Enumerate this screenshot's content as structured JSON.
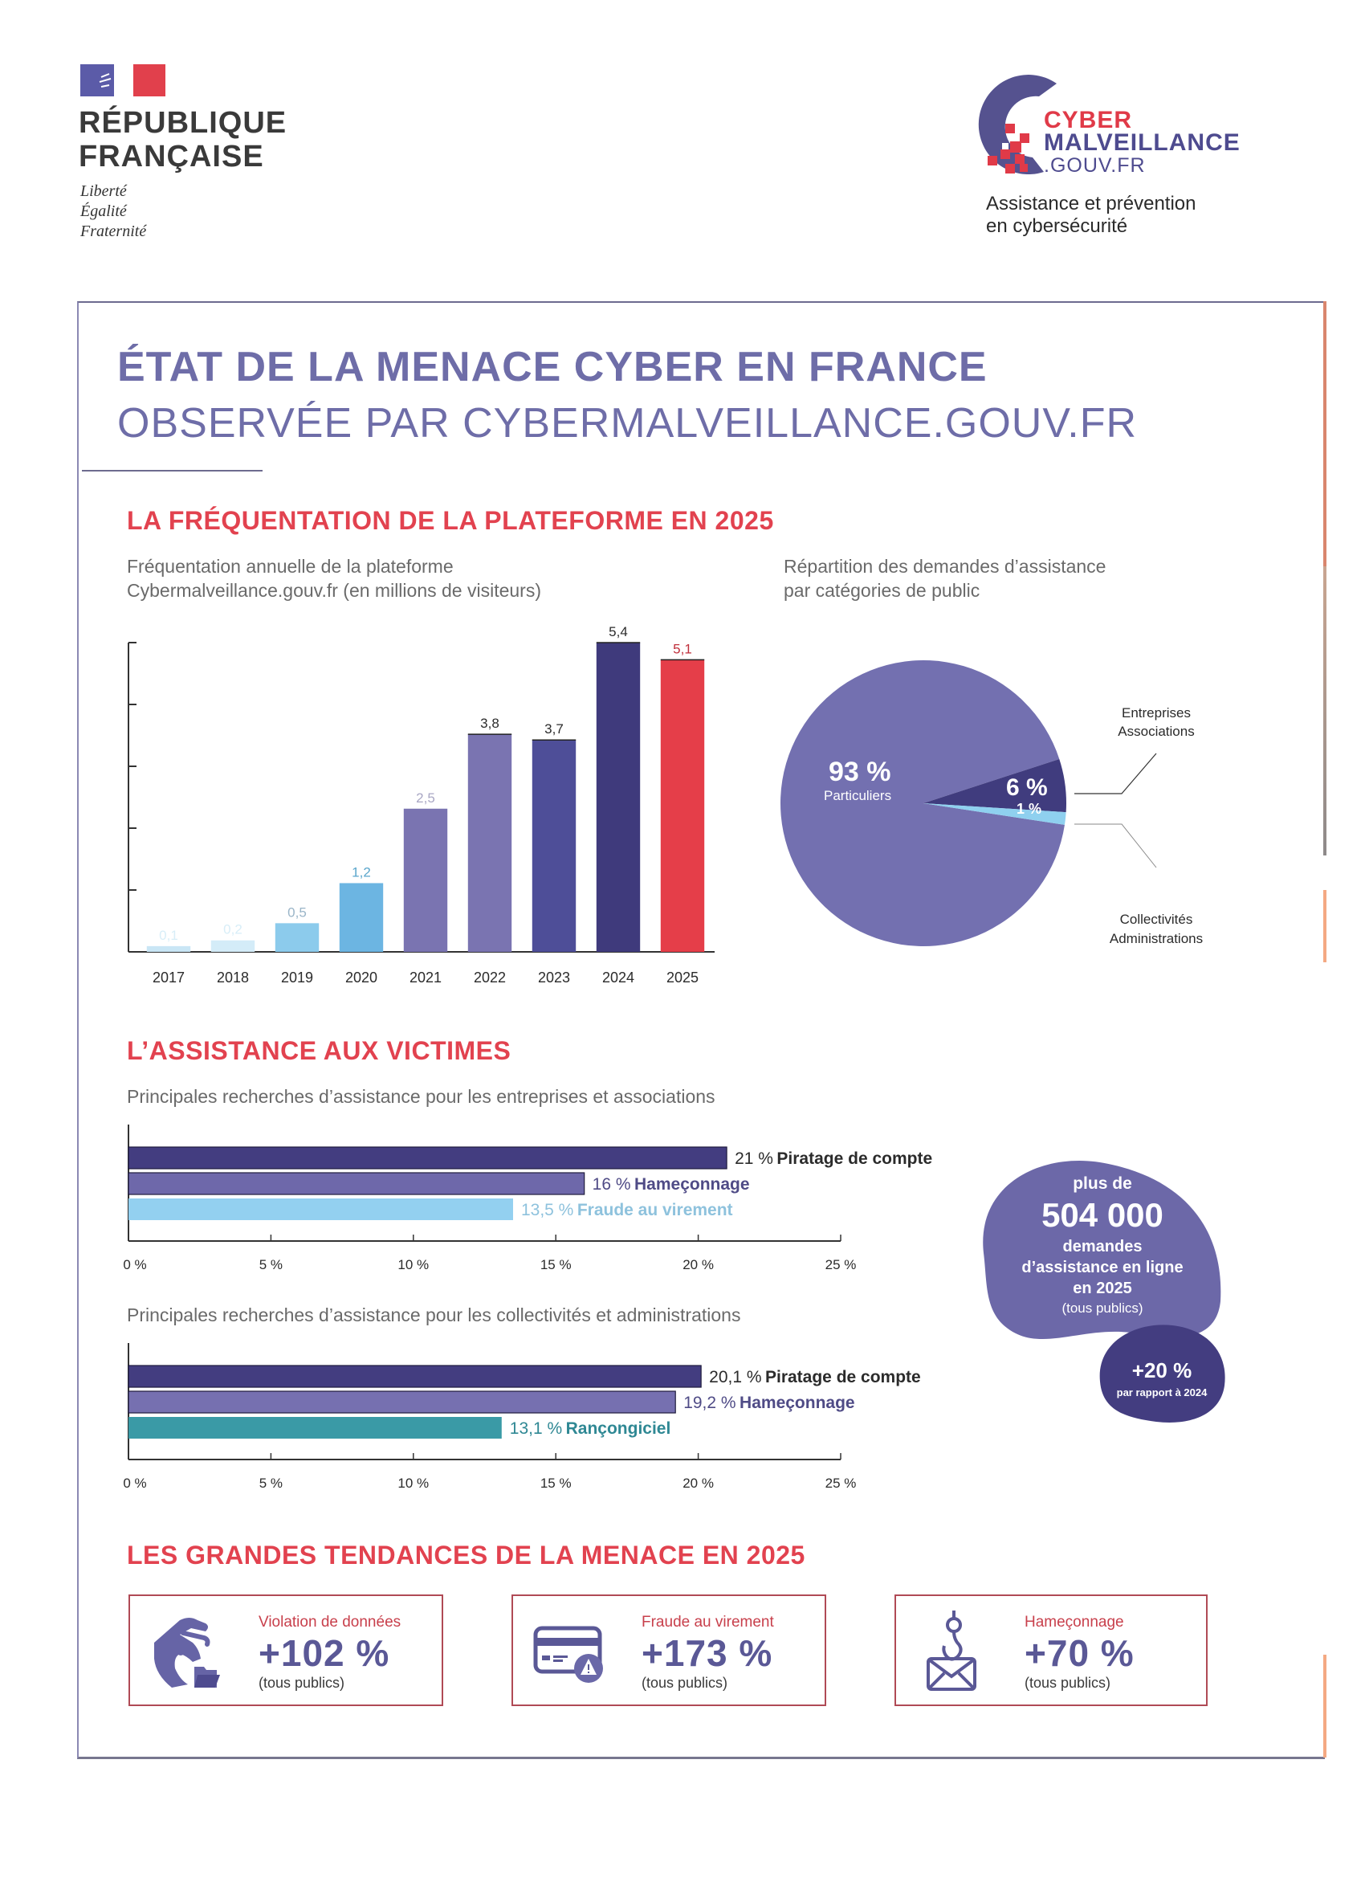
{
  "header": {
    "rf": {
      "line1": "RÉPUBLIQUE",
      "line2": "FRANÇAISE",
      "motto": [
        "Liberté",
        "Égalité",
        "Fraternité"
      ]
    },
    "cybermalveillance": {
      "name_line1": "CYBER",
      "name_line2": "MALVEILLANCE",
      "name_line3": ".GOUV.FR",
      "tagline_line1": "Assistance et prévention",
      "tagline_line2": "en cybersécurité"
    }
  },
  "main": {
    "title": "ÉTAT DE LA MENACE CYBER EN FRANCE",
    "subtitle": "OBSERVÉE PAR CYBERMALVEILLANCE.GOUV.FR"
  },
  "section_frequentation": {
    "title": "LA FRÉQUENTATION DE LA PLATEFORME EN 2025",
    "bar_caption_line1": "Fréquentation annuelle de la plateforme",
    "bar_caption_line2": "Cybermalveillance.gouv.fr (en millions de visiteurs)",
    "pie_caption_line1": "Répartition des demandes d’assistance",
    "pie_caption_line2": "par catégories de public"
  },
  "section_assistance": {
    "title": "L’ASSISTANCE AUX VICTIMES",
    "caption_entreprises": "Principales recherches d’assistance pour les entreprises et associations",
    "caption_collectivites": "Principales recherches d’assistance pour les collectivités et administrations",
    "blob": {
      "line1": "plus de",
      "number": "504 000",
      "line3": "demandes",
      "line4": "d’assistance en ligne",
      "line5": "en 2025",
      "line6": "(tous publics)",
      "growth": "+20 %",
      "growth_note": "par rapport à 2024"
    }
  },
  "section_tendances": {
    "title": "LES GRANDES TENDANCES DE LA MENACE EN 2025",
    "cards": [
      {
        "icon": "hand-grabbing-folder-icon",
        "label": "Violation de données",
        "value": "+102 %",
        "note": "(tous publics)"
      },
      {
        "icon": "credit-card-warning-icon",
        "label": "Fraude au virement",
        "value": "+173 %",
        "note": "(tous publics)"
      },
      {
        "icon": "phishing-hook-envelope-icon",
        "label": "Hameçonnage",
        "value": "+70 %",
        "note": "(tous publics)"
      }
    ]
  },
  "colors": {
    "accent_red": "#e2424f",
    "title_purple": "#6e6da8",
    "bar_light_blue": "#c9e6f5",
    "bar_blue": "#8ccbec",
    "bar_mid_blue": "#6cb5e2",
    "bar_lavender": "#7a74b1",
    "bar_indigo": "#4e4e98",
    "bar_dark": "#3f3a7c",
    "bar_red": "#e53e49",
    "teal": "#3a9aa6"
  },
  "chart_data": [
    {
      "type": "bar",
      "title": "Fréquentation annuelle de la plateforme Cybermalveillance.gouv.fr (en millions de visiteurs)",
      "xlabel": "",
      "ylabel": "",
      "categories": [
        "2017",
        "2018",
        "2019",
        "2020",
        "2021",
        "2022",
        "2023",
        "2024",
        "2025"
      ],
      "values": [
        0.1,
        0.2,
        0.5,
        1.2,
        2.5,
        3.8,
        3.7,
        5.4,
        5.1
      ],
      "value_labels": [
        "0,1",
        "0,2",
        "0,5",
        "1,2",
        "2,5",
        "3,8",
        "3,7",
        "5,4",
        "5,1"
      ],
      "bar_colors": [
        "#c9e6f5",
        "#d4ecf8",
        "#8ccbec",
        "#6cb5e2",
        "#7a74b1",
        "#7a74b1",
        "#4e4e98",
        "#3f3a7c",
        "#e53e49"
      ],
      "label_colors": [
        "#d8eef8",
        "#d8eef8",
        "#9ab5c8",
        "#5aa6cc",
        "#a9a7c4",
        "#2b2b2b",
        "#2b2b2b",
        "#2b2b2b",
        "#c0303c"
      ],
      "ylim": [
        0,
        5.4
      ],
      "yticks": [
        1,
        2,
        3,
        4,
        5
      ],
      "grid": false
    },
    {
      "type": "pie",
      "title": "Répartition des demandes d’assistance par catégories de public",
      "slices": [
        {
          "name": "Particuliers",
          "value": 93,
          "label": "93 %",
          "color": "#7370b0"
        },
        {
          "name": "Entreprises Associations",
          "value": 6,
          "label": "6 %",
          "color": "#403c7e"
        },
        {
          "name": "Collectivités Administrations",
          "value": 1,
          "label": "1 %",
          "color": "#8fd0ef"
        }
      ],
      "callouts": [
        {
          "slice": "Entreprises Associations",
          "line1": "Entreprises",
          "line2": "Associations",
          "position": "top-right"
        },
        {
          "slice": "Collectivités Administrations",
          "line1": "Collectivités",
          "line2": "Administrations",
          "position": "bottom-right"
        }
      ]
    },
    {
      "type": "bar",
      "orientation": "horizontal",
      "title": "Principales recherches d’assistance pour les entreprises et associations",
      "categories": [
        "Piratage de compte",
        "Hameçonnage",
        "Fraude au virement"
      ],
      "values": [
        21,
        16,
        13.5
      ],
      "value_labels": [
        "21 %",
        "16 %",
        "13,5 %"
      ],
      "bar_colors": [
        "#433d80",
        "#6e68aa",
        "#93d0f0"
      ],
      "label_colors": [
        "#2b2b2b",
        "#4f4b86",
        "#8ec2dd"
      ],
      "xlim": [
        0,
        25
      ],
      "xticks": [
        0,
        5,
        10,
        15,
        20,
        25
      ],
      "xtick_labels": [
        "0 %",
        "5 %",
        "10 %",
        "15 %",
        "20 %",
        "25 %"
      ]
    },
    {
      "type": "bar",
      "orientation": "horizontal",
      "title": "Principales recherches d’assistance pour les collectivités et administrations",
      "categories": [
        "Piratage de compte",
        "Hameçonnage",
        "Rançongiciel"
      ],
      "values": [
        20.1,
        19.2,
        13.1
      ],
      "value_labels": [
        "20,1 %",
        "19,2 %",
        "13,1 %"
      ],
      "bar_colors": [
        "#433d80",
        "#7670b0",
        "#3a9aa6"
      ],
      "label_colors": [
        "#2b2b2b",
        "#4f4b86",
        "#2f8894"
      ],
      "xlim": [
        0,
        25
      ],
      "xticks": [
        0,
        5,
        10,
        15,
        20,
        25
      ],
      "xtick_labels": [
        "0 %",
        "5 %",
        "10 %",
        "15 %",
        "20 %",
        "25 %"
      ]
    }
  ]
}
